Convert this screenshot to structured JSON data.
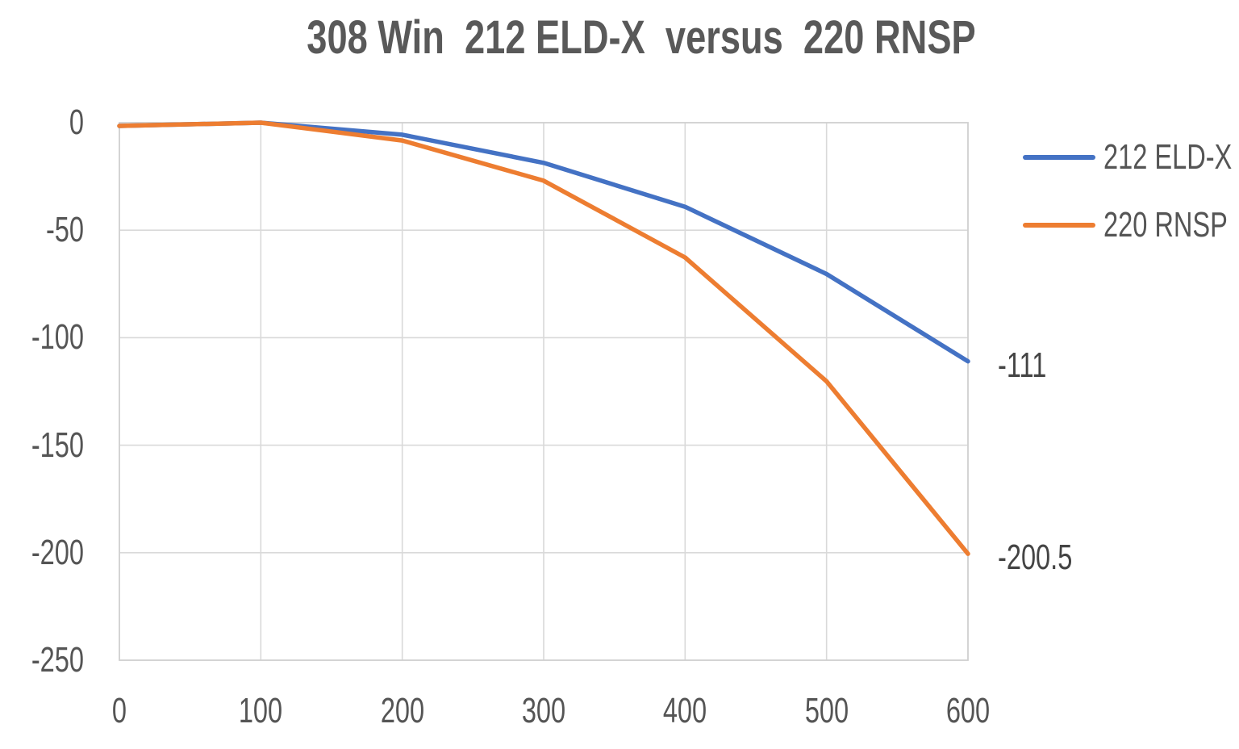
{
  "chart_data": {
    "type": "line",
    "title": "308 Win  212 ELD-X  versus  220 RNSP",
    "xlabel": "",
    "ylabel": "",
    "x": [
      0,
      100,
      200,
      300,
      400,
      500,
      600
    ],
    "xtick_labels": [
      "0",
      "100",
      "200",
      "300",
      "400",
      "500",
      "600"
    ],
    "ytick_labels": [
      "0",
      "-50",
      "-100",
      "-150",
      "-200",
      "-250"
    ],
    "ytick_values": [
      0,
      -50,
      -100,
      -150,
      -200,
      -250
    ],
    "xlim": [
      0,
      600
    ],
    "ylim": [
      -250,
      0
    ],
    "grid": true,
    "legend_position": "right",
    "series": [
      {
        "name": "212 ELD-X",
        "color": "#4472C4",
        "values": [
          -1.5,
          0,
          -5.6,
          -18.7,
          -39.1,
          -70.4,
          -111
        ],
        "end_label": "-111"
      },
      {
        "name": "220 RNSP",
        "color": "#ED7D31",
        "values": [
          -1.5,
          0,
          -8.3,
          -27,
          -62.7,
          -120.3,
          -200.5
        ],
        "end_label": "-200.5"
      }
    ],
    "colors": {
      "gridline": "#D9D9D9",
      "plot_border": "#D0D0D0",
      "title_text": "#595959",
      "tick_text": "#555555",
      "background": "#FFFFFF"
    }
  }
}
